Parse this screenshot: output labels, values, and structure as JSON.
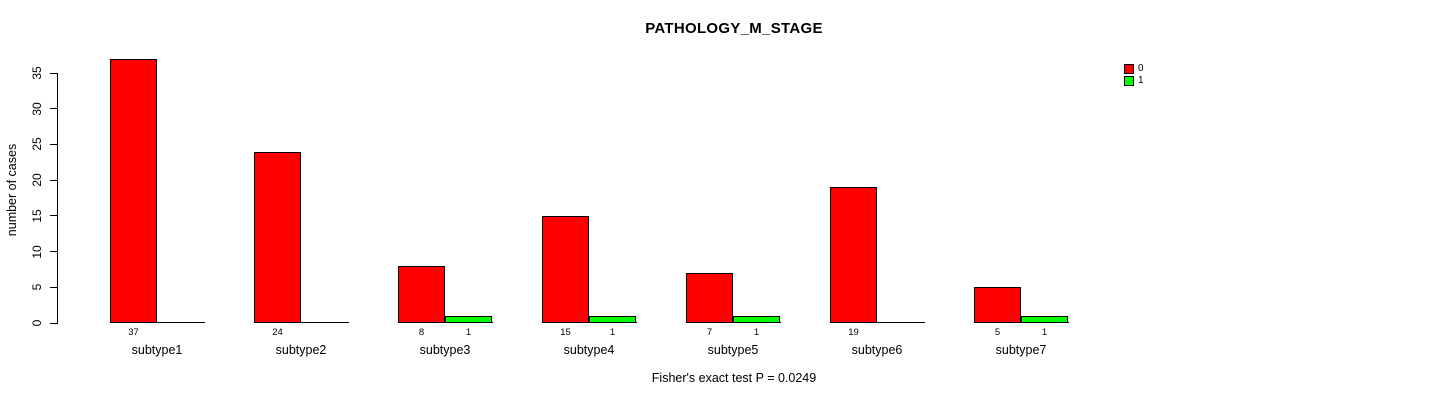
{
  "chart_data": {
    "type": "bar",
    "title": "PATHOLOGY_M_STAGE",
    "ylabel": "number of cases",
    "xlabel": "",
    "annotation": "Fisher's exact test P = 0.0249",
    "categories": [
      "subtype1",
      "subtype2",
      "subtype3",
      "subtype4",
      "subtype5",
      "subtype6",
      "subtype7"
    ],
    "series": [
      {
        "name": "0",
        "color": "#FF0000",
        "values": [
          37,
          24,
          8,
          15,
          7,
          19,
          5
        ]
      },
      {
        "name": "1",
        "color": "#00FF00",
        "values": [
          0,
          0,
          1,
          1,
          1,
          0,
          1
        ]
      }
    ],
    "value_labels": [
      [
        "37",
        ""
      ],
      [
        "24",
        ""
      ],
      [
        "8",
        "1"
      ],
      [
        "15",
        "1"
      ],
      [
        "7",
        "1"
      ],
      [
        "19",
        ""
      ],
      [
        "5",
        "1"
      ]
    ],
    "yticks": [
      0,
      5,
      10,
      15,
      20,
      25,
      30,
      35
    ],
    "ylim": [
      0,
      37
    ],
    "grid": false,
    "legend_position": "top-right",
    "legend": [
      {
        "label": "0",
        "color": "#FF0000"
      },
      {
        "label": "1",
        "color": "#00FF00"
      }
    ],
    "colors": {
      "axis": "#000000",
      "bar_border": "#000000",
      "background": "#FFFFFF",
      "text": "#000000"
    }
  }
}
